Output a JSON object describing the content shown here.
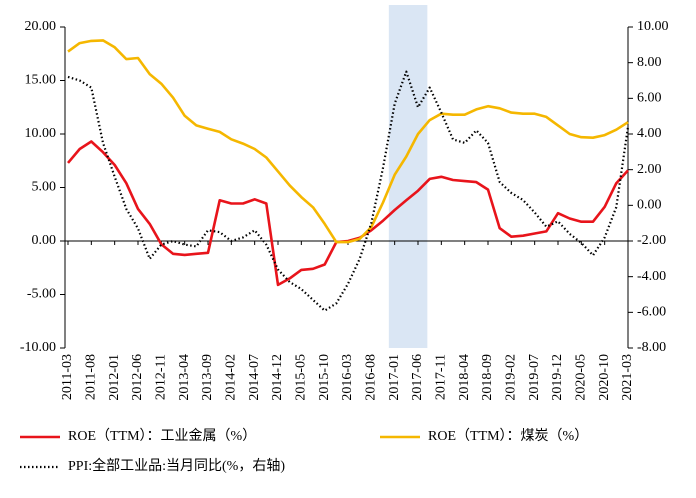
{
  "chart_data": {
    "type": "line",
    "categories": [
      "2011-03",
      null,
      "2011-08",
      null,
      "2012-01",
      null,
      "2012-06",
      null,
      "2012-11",
      null,
      "2013-04",
      null,
      "2013-09",
      null,
      "2014-02",
      null,
      "2014-07",
      null,
      "2014-12",
      null,
      "2015-05",
      null,
      "2015-10",
      null,
      "2016-03",
      null,
      "2016-08",
      null,
      "2017-01",
      null,
      "2017-06",
      null,
      "2017-11",
      null,
      "2018-04",
      null,
      "2018-09",
      null,
      "2019-02",
      null,
      "2019-07",
      null,
      "2019-12",
      null,
      "2020-05",
      null,
      "2020-10",
      null,
      "2021-03"
    ],
    "series": [
      {
        "name": "ROE（TTM）：工业金属（%）",
        "color": "#e8141b",
        "style": "solid",
        "values": [
          7.3,
          8.6,
          9.3,
          8.3,
          7.1,
          5.4,
          3.0,
          1.6,
          -0.3,
          -1.2,
          -1.3,
          -1.2,
          -1.1,
          3.8,
          3.5,
          3.5,
          3.9,
          3.5,
          -4.1,
          -3.5,
          -2.7,
          -2.6,
          -2.2,
          -0.1,
          0.0,
          0.3,
          1.0,
          1.9,
          2.9,
          3.8,
          4.7,
          5.8,
          6.0,
          5.7,
          5.6,
          5.5,
          4.8,
          1.2,
          0.4,
          0.5,
          0.7,
          0.9,
          2.6,
          2.1,
          1.8,
          1.8,
          3.2,
          5.4,
          6.6
        ]
      },
      {
        "name": "ROE（TTM）：煤炭（%）",
        "color": "#f5b700",
        "style": "solid",
        "values": [
          17.7,
          18.5,
          18.7,
          18.75,
          18.1,
          17.0,
          17.1,
          15.6,
          14.7,
          13.4,
          11.7,
          10.8,
          10.5,
          10.2,
          9.5,
          9.1,
          8.6,
          7.8,
          6.5,
          5.2,
          4.1,
          3.15,
          1.6,
          -0.1,
          -0.1,
          0.2,
          1.3,
          3.6,
          6.2,
          7.9,
          10.0,
          11.3,
          11.9,
          11.8,
          11.8,
          12.3,
          12.6,
          12.4,
          12.0,
          11.9,
          11.9,
          11.6,
          10.8,
          10.0,
          9.7,
          9.65,
          9.9,
          10.4,
          11.1
        ]
      },
      {
        "name": "PPI:全部工业品:当月同比(%，右轴)",
        "color": "#000000",
        "style": "dotted",
        "axis": "y2",
        "values": [
          7.2,
          7.0,
          6.6,
          3.5,
          1.6,
          -0.2,
          -1.3,
          -3.0,
          -2.2,
          -2.0,
          -2.2,
          -2.3,
          -1.4,
          -1.5,
          -2.0,
          -1.8,
          -1.4,
          -2.2,
          -3.6,
          -4.3,
          -4.7,
          -5.3,
          -5.9,
          -5.5,
          -4.4,
          -3.0,
          -1.0,
          2.1,
          5.7,
          7.5,
          5.5,
          6.6,
          5.2,
          3.7,
          3.5,
          4.2,
          3.5,
          1.3,
          0.7,
          0.3,
          -0.4,
          -1.2,
          -0.9,
          -1.6,
          -2.1,
          -2.8,
          -1.8,
          -0.1,
          4.4
        ]
      }
    ],
    "ylim": [
      -10,
      20
    ],
    "yticks": [
      {
        "value": -10,
        "label": "-10.00"
      },
      {
        "value": -5,
        "label": "-5.00"
      },
      {
        "value": 0,
        "label": "0.00"
      },
      {
        "value": 5,
        "label": "5.00"
      },
      {
        "value": 10,
        "label": "10.00"
      },
      {
        "value": 15,
        "label": "15.00"
      },
      {
        "value": 20,
        "label": "20.00"
      }
    ],
    "y2lim": [
      -8,
      10
    ],
    "y2ticks": [
      {
        "value": -8,
        "label": "-8.00"
      },
      {
        "value": -6,
        "label": "-6.00"
      },
      {
        "value": -4,
        "label": "-4.00"
      },
      {
        "value": -2,
        "label": "-2.00"
      },
      {
        "value": 0,
        "label": "0.00"
      },
      {
        "value": 2,
        "label": "2.00"
      },
      {
        "value": 4,
        "label": "4.00"
      },
      {
        "value": 6,
        "label": "6.00"
      },
      {
        "value": 8,
        "label": "8.00"
      },
      {
        "value": 10,
        "label": "10.00"
      }
    ],
    "highlight": {
      "from": "2017-01",
      "to": "2017-06",
      "color": "#dae6f4"
    },
    "grid": false,
    "legend": "bottom"
  }
}
